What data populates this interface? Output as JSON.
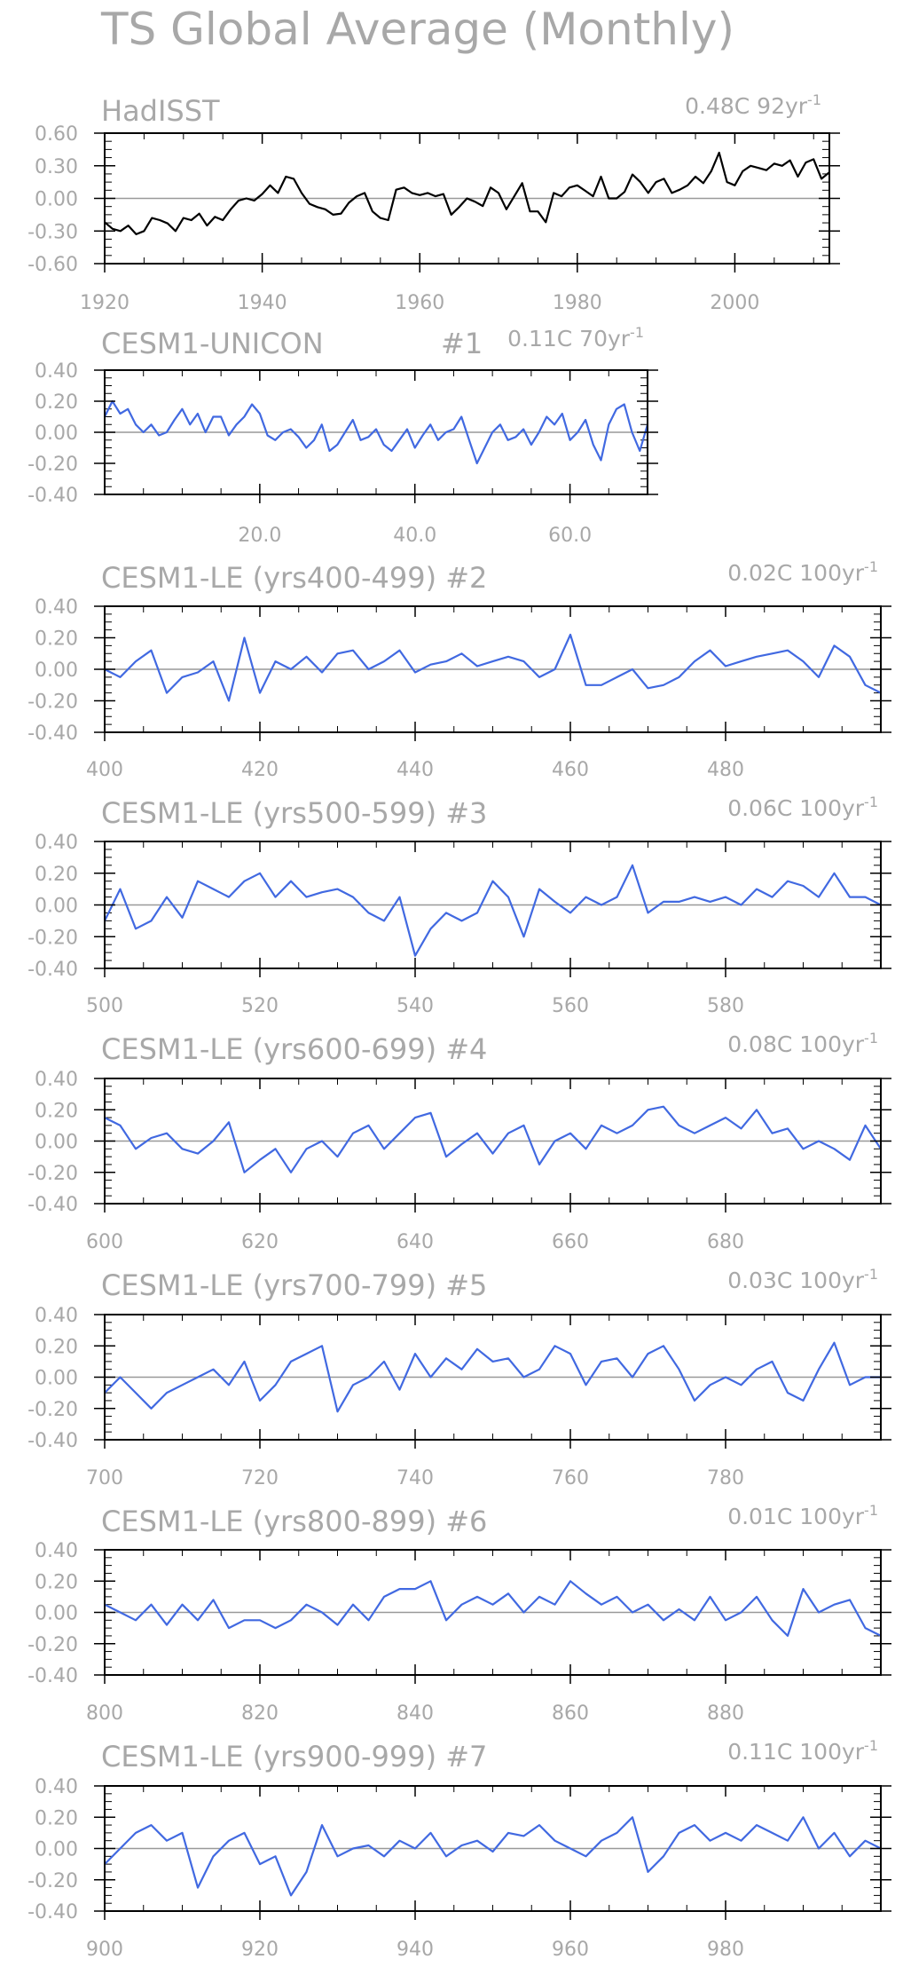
{
  "page_title": "TS Global Average (Monthly)",
  "colors": {
    "observed": "#000000",
    "model": "#4169e1",
    "text": "#a8a8a8",
    "axis": "#000000",
    "zero_line": "#999999"
  },
  "chart_data": [
    {
      "type": "line",
      "title": "HadISST",
      "trend_label": "0.48C 92yr",
      "trend_exp": "-1",
      "color": "#000000",
      "xlim": [
        1920,
        2012
      ],
      "ylim": [
        -0.6,
        0.6
      ],
      "xticks": [
        1920,
        1940,
        1960,
        1980,
        2000
      ],
      "xtick_labels": [
        "1920",
        "1940",
        "1960",
        "1980",
        "2000"
      ],
      "yticks": [
        0.6,
        0.3,
        0.0,
        -0.3,
        -0.6
      ],
      "ytick_labels": [
        "0.60",
        "0.30",
        "0.00",
        "-0.30",
        "-0.60"
      ],
      "x": [
        1920,
        1921,
        1922,
        1923,
        1924,
        1925,
        1926,
        1927,
        1928,
        1929,
        1930,
        1931,
        1932,
        1933,
        1934,
        1935,
        1936,
        1937,
        1938,
        1939,
        1940,
        1941,
        1942,
        1943,
        1944,
        1945,
        1946,
        1947,
        1948,
        1949,
        1950,
        1951,
        1952,
        1953,
        1954,
        1955,
        1956,
        1957,
        1958,
        1959,
        1960,
        1961,
        1962,
        1963,
        1964,
        1965,
        1966,
        1967,
        1968,
        1969,
        1970,
        1971,
        1972,
        1973,
        1974,
        1975,
        1976,
        1977,
        1978,
        1979,
        1980,
        1981,
        1982,
        1983,
        1984,
        1985,
        1986,
        1987,
        1988,
        1989,
        1990,
        1991,
        1992,
        1993,
        1994,
        1995,
        1996,
        1997,
        1998,
        1999,
        2000,
        2001,
        2002,
        2003,
        2004,
        2005,
        2006,
        2007,
        2008,
        2009,
        2010,
        2011,
        2012
      ],
      "values": [
        -0.22,
        -0.28,
        -0.3,
        -0.25,
        -0.33,
        -0.3,
        -0.18,
        -0.2,
        -0.23,
        -0.3,
        -0.18,
        -0.2,
        -0.14,
        -0.25,
        -0.17,
        -0.2,
        -0.1,
        -0.02,
        0.0,
        -0.02,
        0.04,
        0.12,
        0.05,
        0.2,
        0.18,
        0.05,
        -0.05,
        -0.08,
        -0.1,
        -0.15,
        -0.14,
        -0.04,
        0.02,
        0.05,
        -0.12,
        -0.18,
        -0.2,
        0.08,
        0.1,
        0.05,
        0.03,
        0.05,
        0.02,
        0.04,
        -0.15,
        -0.08,
        0.0,
        -0.03,
        -0.07,
        0.1,
        0.05,
        -0.1,
        0.02,
        0.14,
        -0.12,
        -0.12,
        -0.22,
        0.05,
        0.02,
        0.1,
        0.12,
        0.07,
        0.02,
        0.2,
        0.0,
        0.0,
        0.06,
        0.22,
        0.15,
        0.05,
        0.15,
        0.18,
        0.05,
        0.08,
        0.12,
        0.2,
        0.14,
        0.25,
        0.42,
        0.15,
        0.12,
        0.25,
        0.3,
        0.28,
        0.26,
        0.32,
        0.3,
        0.35,
        0.2,
        0.33,
        0.36,
        0.18,
        0.24
      ]
    },
    {
      "type": "line",
      "title": "CESM1-UNICON",
      "run_label": "#1",
      "trend_label": "0.11C 70yr",
      "trend_exp": "-1",
      "color": "#4169e1",
      "xlim": [
        0,
        70
      ],
      "ylim": [
        -0.4,
        0.4
      ],
      "xticks": [
        20,
        40,
        60
      ],
      "xtick_labels": [
        "20.0",
        "40.0",
        "60.0"
      ],
      "yticks": [
        0.4,
        0.2,
        0.0,
        -0.2,
        -0.4
      ],
      "ytick_labels": [
        "0.40",
        "0.20",
        "0.00",
        "-0.20",
        "-0.40"
      ],
      "x": [
        0,
        1,
        2,
        3,
        4,
        5,
        6,
        7,
        8,
        9,
        10,
        11,
        12,
        13,
        14,
        15,
        16,
        17,
        18,
        19,
        20,
        21,
        22,
        23,
        24,
        25,
        26,
        27,
        28,
        29,
        30,
        31,
        32,
        33,
        34,
        35,
        36,
        37,
        38,
        39,
        40,
        41,
        42,
        43,
        44,
        45,
        46,
        47,
        48,
        49,
        50,
        51,
        52,
        53,
        54,
        55,
        56,
        57,
        58,
        59,
        60,
        61,
        62,
        63,
        64,
        65,
        66,
        67,
        68,
        69,
        70
      ],
      "values": [
        0.1,
        0.2,
        0.12,
        0.15,
        0.05,
        0.0,
        0.05,
        -0.02,
        0.0,
        0.08,
        0.15,
        0.05,
        0.12,
        0.0,
        0.1,
        0.1,
        -0.02,
        0.05,
        0.1,
        0.18,
        0.12,
        -0.02,
        -0.05,
        0.0,
        0.02,
        -0.03,
        -0.1,
        -0.05,
        0.05,
        -0.12,
        -0.08,
        0.0,
        0.08,
        -0.05,
        -0.03,
        0.02,
        -0.08,
        -0.12,
        -0.05,
        0.02,
        -0.1,
        -0.02,
        0.05,
        -0.05,
        0.0,
        0.02,
        0.1,
        -0.05,
        -0.2,
        -0.1,
        0.0,
        0.05,
        -0.05,
        -0.03,
        0.02,
        -0.08,
        0.0,
        0.1,
        0.05,
        0.12,
        -0.05,
        0.0,
        0.08,
        -0.08,
        -0.18,
        0.05,
        0.15,
        0.18,
        0.0,
        -0.12,
        0.05
      ]
    },
    {
      "type": "line",
      "title": "CESM1-LE (yrs400-499)",
      "run_label": "#2",
      "trend_label": "0.02C 100yr",
      "trend_exp": "-1",
      "color": "#4169e1",
      "xlim": [
        400,
        500
      ],
      "ylim": [
        -0.4,
        0.4
      ],
      "xticks": [
        400,
        420,
        440,
        460,
        480
      ],
      "xtick_labels": [
        "400",
        "420",
        "440",
        "460",
        "480"
      ],
      "yticks": [
        0.4,
        0.2,
        0.0,
        -0.2,
        -0.4
      ],
      "ytick_labels": [
        "0.40",
        "0.20",
        "0.00",
        "-0.20",
        "-0.40"
      ],
      "x": [
        400,
        402,
        404,
        406,
        408,
        410,
        412,
        414,
        416,
        418,
        420,
        422,
        424,
        426,
        428,
        430,
        432,
        434,
        436,
        438,
        440,
        442,
        444,
        446,
        448,
        450,
        452,
        454,
        456,
        458,
        460,
        462,
        464,
        466,
        468,
        470,
        472,
        474,
        476,
        478,
        480,
        482,
        484,
        486,
        488,
        490,
        492,
        494,
        496,
        498,
        500
      ],
      "values": [
        0.0,
        -0.05,
        0.05,
        0.12,
        -0.15,
        -0.05,
        -0.02,
        0.05,
        -0.2,
        0.2,
        -0.15,
        0.05,
        0.0,
        0.08,
        -0.02,
        0.1,
        0.12,
        0.0,
        0.05,
        0.12,
        -0.02,
        0.03,
        0.05,
        0.1,
        0.02,
        0.05,
        0.08,
        0.05,
        -0.05,
        0.0,
        0.22,
        -0.1,
        -0.1,
        -0.05,
        0.0,
        -0.12,
        -0.1,
        -0.05,
        0.05,
        0.12,
        0.02,
        0.05,
        0.08,
        0.1,
        0.12,
        0.05,
        -0.05,
        0.15,
        0.08,
        -0.1,
        -0.15
      ]
    },
    {
      "type": "line",
      "title": "CESM1-LE (yrs500-599)",
      "run_label": "#3",
      "trend_label": "0.06C 100yr",
      "trend_exp": "-1",
      "color": "#4169e1",
      "xlim": [
        500,
        600
      ],
      "ylim": [
        -0.4,
        0.4
      ],
      "xticks": [
        500,
        520,
        540,
        560,
        580
      ],
      "xtick_labels": [
        "500",
        "520",
        "540",
        "560",
        "580"
      ],
      "yticks": [
        0.4,
        0.2,
        0.0,
        -0.2,
        -0.4
      ],
      "ytick_labels": [
        "0.40",
        "0.20",
        "0.00",
        "-0.20",
        "-0.40"
      ],
      "x": [
        500,
        502,
        504,
        506,
        508,
        510,
        512,
        514,
        516,
        518,
        520,
        522,
        524,
        526,
        528,
        530,
        532,
        534,
        536,
        538,
        540,
        542,
        544,
        546,
        548,
        550,
        552,
        554,
        556,
        558,
        560,
        562,
        564,
        566,
        568,
        570,
        572,
        574,
        576,
        578,
        580,
        582,
        584,
        586,
        588,
        590,
        592,
        594,
        596,
        598,
        600
      ],
      "values": [
        -0.1,
        0.1,
        -0.15,
        -0.1,
        0.05,
        -0.08,
        0.15,
        0.1,
        0.05,
        0.15,
        0.2,
        0.05,
        0.15,
        0.05,
        0.08,
        0.1,
        0.05,
        -0.05,
        -0.1,
        0.05,
        -0.32,
        -0.15,
        -0.05,
        -0.1,
        -0.05,
        0.15,
        0.05,
        -0.2,
        0.1,
        0.02,
        -0.05,
        0.05,
        0.0,
        0.05,
        0.25,
        -0.05,
        0.02,
        0.02,
        0.05,
        0.02,
        0.05,
        0.0,
        0.1,
        0.05,
        0.15,
        0.12,
        0.05,
        0.2,
        0.05,
        0.05,
        0.0
      ]
    },
    {
      "type": "line",
      "title": "CESM1-LE (yrs600-699)",
      "run_label": "#4",
      "trend_label": "0.08C 100yr",
      "trend_exp": "-1",
      "color": "#4169e1",
      "xlim": [
        600,
        700
      ],
      "ylim": [
        -0.4,
        0.4
      ],
      "xticks": [
        600,
        620,
        640,
        660,
        680
      ],
      "xtick_labels": [
        "600",
        "620",
        "640",
        "660",
        "680"
      ],
      "yticks": [
        0.4,
        0.2,
        0.0,
        -0.2,
        -0.4
      ],
      "ytick_labels": [
        "0.40",
        "0.20",
        "0.00",
        "-0.20",
        "-0.40"
      ],
      "x": [
        600,
        602,
        604,
        606,
        608,
        610,
        612,
        614,
        616,
        618,
        620,
        622,
        624,
        626,
        628,
        630,
        632,
        634,
        636,
        638,
        640,
        642,
        644,
        646,
        648,
        650,
        652,
        654,
        656,
        658,
        660,
        662,
        664,
        666,
        668,
        670,
        672,
        674,
        676,
        678,
        680,
        682,
        684,
        686,
        688,
        690,
        692,
        694,
        696,
        698,
        700
      ],
      "values": [
        0.15,
        0.1,
        -0.05,
        0.02,
        0.05,
        -0.05,
        -0.08,
        0.0,
        0.12,
        -0.2,
        -0.12,
        -0.05,
        -0.2,
        -0.05,
        0.0,
        -0.1,
        0.05,
        0.1,
        -0.05,
        0.05,
        0.15,
        0.18,
        -0.1,
        -0.02,
        0.05,
        -0.08,
        0.05,
        0.1,
        -0.15,
        0.0,
        0.05,
        -0.05,
        0.1,
        0.05,
        0.1,
        0.2,
        0.22,
        0.1,
        0.05,
        0.1,
        0.15,
        0.08,
        0.2,
        0.05,
        0.08,
        -0.05,
        0.0,
        -0.05,
        -0.12,
        0.1,
        -0.05
      ]
    },
    {
      "type": "line",
      "title": "CESM1-LE (yrs700-799)",
      "run_label": "#5",
      "trend_label": "0.03C 100yr",
      "trend_exp": "-1",
      "color": "#4169e1",
      "xlim": [
        700,
        800
      ],
      "ylim": [
        -0.4,
        0.4
      ],
      "xticks": [
        700,
        720,
        740,
        760,
        780
      ],
      "xtick_labels": [
        "700",
        "720",
        "740",
        "760",
        "780"
      ],
      "yticks": [
        0.4,
        0.2,
        0.0,
        -0.2,
        -0.4
      ],
      "ytick_labels": [
        "0.40",
        "0.20",
        "0.00",
        "-0.20",
        "-0.40"
      ],
      "x": [
        700,
        702,
        704,
        706,
        708,
        710,
        712,
        714,
        716,
        718,
        720,
        722,
        724,
        726,
        728,
        730,
        732,
        734,
        736,
        738,
        740,
        742,
        744,
        746,
        748,
        750,
        752,
        754,
        756,
        758,
        760,
        762,
        764,
        766,
        768,
        770,
        772,
        774,
        776,
        778,
        780,
        782,
        784,
        786,
        788,
        790,
        792,
        794,
        796,
        798,
        800
      ],
      "values": [
        -0.1,
        0.0,
        -0.1,
        -0.2,
        -0.1,
        -0.05,
        0.0,
        0.05,
        -0.05,
        0.1,
        -0.15,
        -0.05,
        0.1,
        0.15,
        0.2,
        -0.22,
        -0.05,
        0.0,
        0.1,
        -0.08,
        0.15,
        0.0,
        0.12,
        0.05,
        0.18,
        0.1,
        0.12,
        0.0,
        0.05,
        0.2,
        0.15,
        -0.05,
        0.1,
        0.12,
        0.0,
        0.15,
        0.2,
        0.05,
        -0.15,
        -0.05,
        0.0,
        -0.05,
        0.05,
        0.1,
        -0.1,
        -0.15,
        0.05,
        0.22,
        -0.05,
        0.0,
        0.0
      ]
    },
    {
      "type": "line",
      "title": "CESM1-LE (yrs800-899)",
      "run_label": "#6",
      "trend_label": "0.01C 100yr",
      "trend_exp": "-1",
      "color": "#4169e1",
      "xlim": [
        800,
        900
      ],
      "ylim": [
        -0.4,
        0.4
      ],
      "xticks": [
        800,
        820,
        840,
        860,
        880
      ],
      "xtick_labels": [
        "800",
        "820",
        "840",
        "860",
        "880"
      ],
      "yticks": [
        0.4,
        0.2,
        0.0,
        -0.2,
        -0.4
      ],
      "ytick_labels": [
        "0.40",
        "0.20",
        "0.00",
        "-0.20",
        "-0.40"
      ],
      "x": [
        800,
        802,
        804,
        806,
        808,
        810,
        812,
        814,
        816,
        818,
        820,
        822,
        824,
        826,
        828,
        830,
        832,
        834,
        836,
        838,
        840,
        842,
        844,
        846,
        848,
        850,
        852,
        854,
        856,
        858,
        860,
        862,
        864,
        866,
        868,
        870,
        872,
        874,
        876,
        878,
        880,
        882,
        884,
        886,
        888,
        890,
        892,
        894,
        896,
        898,
        900
      ],
      "values": [
        0.05,
        0.0,
        -0.05,
        0.05,
        -0.08,
        0.05,
        -0.05,
        0.08,
        -0.1,
        -0.05,
        -0.05,
        -0.1,
        -0.05,
        0.05,
        0.0,
        -0.08,
        0.05,
        -0.05,
        0.1,
        0.15,
        0.15,
        0.2,
        -0.05,
        0.05,
        0.1,
        0.05,
        0.12,
        0.0,
        0.1,
        0.05,
        0.2,
        0.12,
        0.05,
        0.1,
        0.0,
        0.05,
        -0.05,
        0.02,
        -0.05,
        0.1,
        -0.05,
        0.0,
        0.1,
        -0.05,
        -0.15,
        0.15,
        0.0,
        0.05,
        0.08,
        -0.1,
        -0.15
      ]
    },
    {
      "type": "line",
      "title": "CESM1-LE (yrs900-999)",
      "run_label": "#7",
      "trend_label": "0.11C 100yr",
      "trend_exp": "-1",
      "color": "#4169e1",
      "xlim": [
        900,
        1000
      ],
      "ylim": [
        -0.4,
        0.4
      ],
      "xticks": [
        900,
        920,
        940,
        960,
        980
      ],
      "xtick_labels": [
        "900",
        "920",
        "940",
        "960",
        "980"
      ],
      "yticks": [
        0.4,
        0.2,
        0.0,
        -0.2,
        -0.4
      ],
      "ytick_labels": [
        "0.40",
        "0.20",
        "0.00",
        "-0.20",
        "-0.40"
      ],
      "x": [
        900,
        902,
        904,
        906,
        908,
        910,
        912,
        914,
        916,
        918,
        920,
        922,
        924,
        926,
        928,
        930,
        932,
        934,
        936,
        938,
        940,
        942,
        944,
        946,
        948,
        950,
        952,
        954,
        956,
        958,
        960,
        962,
        964,
        966,
        968,
        970,
        972,
        974,
        976,
        978,
        980,
        982,
        984,
        986,
        988,
        990,
        992,
        994,
        996,
        998,
        1000
      ],
      "values": [
        -0.1,
        0.0,
        0.1,
        0.15,
        0.05,
        0.1,
        -0.25,
        -0.05,
        0.05,
        0.1,
        -0.1,
        -0.05,
        -0.3,
        -0.15,
        0.15,
        -0.05,
        0.0,
        0.02,
        -0.05,
        0.05,
        0.0,
        0.1,
        -0.05,
        0.02,
        0.05,
        -0.02,
        0.1,
        0.08,
        0.15,
        0.05,
        0.0,
        -0.05,
        0.05,
        0.1,
        0.2,
        -0.15,
        -0.05,
        0.1,
        0.15,
        0.05,
        0.1,
        0.05,
        0.15,
        0.1,
        0.05,
        0.2,
        0.0,
        0.1,
        -0.05,
        0.05,
        0.0
      ]
    }
  ]
}
